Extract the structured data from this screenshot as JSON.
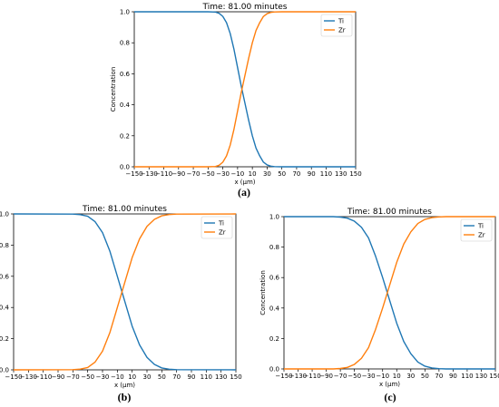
{
  "captions": [
    "(a)",
    "(b)",
    "(c)"
  ],
  "chart_data": [
    {
      "id": "a",
      "type": "line",
      "title": "Time: 81.00 minutes",
      "xlabel": "x (μm)",
      "ylabel": "Concentration",
      "xlim": [
        -150,
        150
      ],
      "ylim": [
        0,
        1
      ],
      "xticks": [
        "−150",
        "−130",
        "−110",
        "−90",
        "−70",
        "−50",
        "−30",
        "−10",
        "10",
        "30",
        "50",
        "70",
        "90",
        "110",
        "130",
        "150"
      ],
      "yticks": [
        "0.0",
        "0.2",
        "0.4",
        "0.6",
        "0.8",
        "1.0"
      ],
      "grid": false,
      "legend": "top-right",
      "series": [
        {
          "name": "Ti",
          "color": "#1f77b4",
          "x": [
            -150,
            -50,
            -40,
            -35,
            -30,
            -25,
            -20,
            -15,
            -10,
            -5,
            0,
            5,
            10,
            15,
            20,
            25,
            30,
            35,
            40,
            50,
            150
          ],
          "y": [
            1.0,
            1.0,
            0.998,
            0.99,
            0.97,
            0.93,
            0.86,
            0.76,
            0.64,
            0.52,
            0.41,
            0.3,
            0.2,
            0.12,
            0.07,
            0.03,
            0.012,
            0.004,
            0.001,
            0.0,
            0.0
          ]
        },
        {
          "name": "Zr",
          "color": "#ff7f0e",
          "x": [
            -150,
            -50,
            -40,
            -35,
            -30,
            -25,
            -20,
            -15,
            -10,
            -5,
            0,
            5,
            10,
            15,
            20,
            25,
            30,
            35,
            40,
            50,
            150
          ],
          "y": [
            0.0,
            0.0,
            0.002,
            0.01,
            0.03,
            0.07,
            0.14,
            0.24,
            0.36,
            0.48,
            0.59,
            0.7,
            0.8,
            0.88,
            0.93,
            0.97,
            0.988,
            0.996,
            0.999,
            1.0,
            1.0
          ]
        }
      ]
    },
    {
      "id": "b",
      "type": "line",
      "title": "Time: 81.00 minutes",
      "xlabel": "x (μm)",
      "ylabel": "Concentration",
      "xlim": [
        -150,
        150
      ],
      "ylim": [
        0,
        1
      ],
      "xticks": [
        "−150",
        "−130",
        "−110",
        "−90",
        "−70",
        "−50",
        "−30",
        "−10",
        "10",
        "30",
        "50",
        "70",
        "90",
        "110",
        "130",
        "150"
      ],
      "yticks": [
        "0.0",
        "0.2",
        "0.4",
        "0.6",
        "0.8",
        "1.0"
      ],
      "grid": false,
      "legend": "top-right",
      "series": [
        {
          "name": "Ti",
          "color": "#1f77b4",
          "x": [
            -150,
            -70,
            -60,
            -50,
            -40,
            -30,
            -20,
            -10,
            0,
            10,
            20,
            30,
            40,
            50,
            60,
            70,
            150
          ],
          "y": [
            1.0,
            0.999,
            0.995,
            0.985,
            0.95,
            0.88,
            0.76,
            0.6,
            0.44,
            0.28,
            0.16,
            0.08,
            0.035,
            0.012,
            0.004,
            0.001,
            0.0
          ]
        },
        {
          "name": "Zr",
          "color": "#ff7f0e",
          "x": [
            -150,
            -70,
            -60,
            -50,
            -40,
            -30,
            -20,
            -10,
            0,
            10,
            20,
            30,
            40,
            50,
            60,
            70,
            150
          ],
          "y": [
            0.0,
            0.001,
            0.005,
            0.015,
            0.05,
            0.12,
            0.24,
            0.4,
            0.56,
            0.72,
            0.84,
            0.92,
            0.965,
            0.988,
            0.996,
            0.999,
            1.0
          ]
        }
      ]
    },
    {
      "id": "c",
      "type": "line",
      "title": "Time: 81.00 minutes",
      "xlabel": "x (μm)",
      "ylabel": "Concentration",
      "xlim": [
        -150,
        150
      ],
      "ylim": [
        0,
        1
      ],
      "xticks": [
        "−150",
        "−130",
        "−110",
        "−90",
        "−70",
        "−50",
        "−30",
        "−10",
        "10",
        "30",
        "50",
        "70",
        "90",
        "110",
        "130",
        "150"
      ],
      "yticks": [
        "0.0",
        "0.2",
        "0.4",
        "0.6",
        "0.8",
        "1.0"
      ],
      "grid": false,
      "legend": "top-right",
      "series": [
        {
          "name": "Ti",
          "color": "#1f77b4",
          "x": [
            -150,
            -80,
            -70,
            -60,
            -50,
            -40,
            -30,
            -20,
            -10,
            0,
            10,
            20,
            30,
            40,
            50,
            60,
            70,
            80,
            150
          ],
          "y": [
            1.0,
            1.0,
            0.997,
            0.99,
            0.97,
            0.93,
            0.86,
            0.74,
            0.6,
            0.45,
            0.3,
            0.18,
            0.1,
            0.045,
            0.018,
            0.006,
            0.002,
            0.0,
            0.0
          ]
        },
        {
          "name": "Zr",
          "color": "#ff7f0e",
          "x": [
            -150,
            -80,
            -70,
            -60,
            -50,
            -40,
            -30,
            -20,
            -10,
            0,
            10,
            20,
            30,
            40,
            50,
            60,
            70,
            80,
            150
          ],
          "y": [
            0.0,
            0.0,
            0.003,
            0.01,
            0.03,
            0.07,
            0.14,
            0.26,
            0.4,
            0.55,
            0.7,
            0.82,
            0.9,
            0.955,
            0.982,
            0.994,
            0.998,
            1.0,
            1.0
          ]
        }
      ]
    }
  ]
}
